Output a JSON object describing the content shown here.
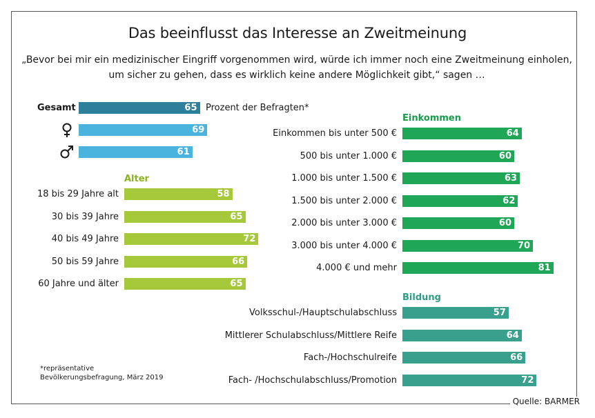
{
  "title": "Das beeinflusst das Interesse an Zweitmeinung",
  "subtitle": "„Bevor bei mir ein medizinischer Eingriff vorgenommen wird, würde ich immer noch eine Zweitmeinung einholen, um sicher zu gehen, dass es wirklich keine andere Möglichkeit gibt,“ sagen …",
  "unit_label": "Prozent der Befragten*",
  "footnote": "*repräsentative\nBevölkerungsbefragung, März 2019",
  "source": "Quelle: BARMER",
  "colors": {
    "gesamt": "#2e7f9a",
    "gender": "#4ab3de",
    "alter": "#a5c93a",
    "einkommen": "#1fa656",
    "bildung": "#3aa08e",
    "alter_heading": "#8ab31f",
    "einkommen_heading": "#1a9a4c",
    "bildung_heading": "#2f9a86"
  },
  "chart_data": [
    {
      "type": "bar",
      "title": "",
      "categories": [
        "Gesamt",
        "♀",
        "♂"
      ],
      "values": [
        65,
        69,
        61
      ],
      "xlim": [
        0,
        100
      ]
    },
    {
      "type": "bar",
      "title": "Alter",
      "categories": [
        "18 bis 29 Jahre alt",
        "30 bis 39 Jahre",
        "40 bis 49 Jahre",
        "50 bis 59 Jahre",
        "60 Jahre und älter"
      ],
      "values": [
        58,
        65,
        72,
        66,
        65
      ],
      "xlim": [
        0,
        100
      ]
    },
    {
      "type": "bar",
      "title": "Einkommen",
      "categories": [
        "Einkommen bis unter 500 €",
        "500 bis unter 1.000 €",
        "1.000 bis unter 1.500 €",
        "1.500 bis unter 2.000 €",
        "2.000 bis unter 3.000 €",
        "3.000 bis unter 4.000 €",
        "4.000 € und mehr"
      ],
      "values": [
        64,
        60,
        63,
        62,
        60,
        70,
        81
      ],
      "xlim": [
        0,
        100
      ]
    },
    {
      "type": "bar",
      "title": "Bildung",
      "categories": [
        "Volksschul-/Hauptschulabschluss",
        "Mittlerer Schulabschluss/Mittlere Reife",
        "Fach-/Hochschulreife",
        "Fach- /Hochschulabschluss/Promotion"
      ],
      "values": [
        57,
        64,
        66,
        72
      ],
      "xlim": [
        0,
        100
      ]
    }
  ]
}
